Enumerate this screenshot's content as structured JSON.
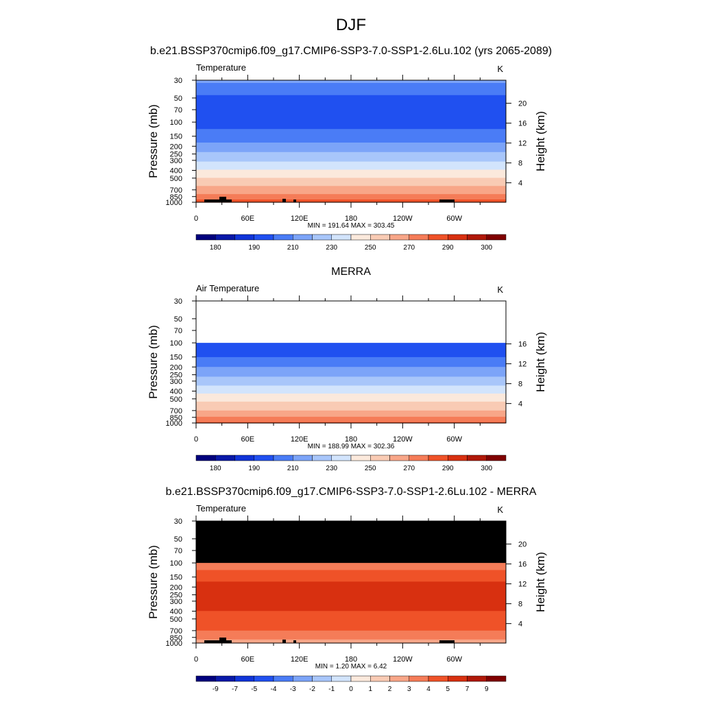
{
  "figure": {
    "title": "DJF"
  },
  "panels": [
    {
      "title": "b.e21.BSSP370cmip6.f09_g17.CMIP6-SSP3-7.0-SSP1-2.6Lu.102 (yrs 2065-2089)",
      "left_label": "Temperature",
      "units": "K",
      "stats": "MIN = 191.64  MAX = 303.45",
      "ylabel": "Pressure (mb)",
      "ylabel_right": "Height (km)",
      "pressure_ticks": [
        "30",
        "50",
        "70",
        "100",
        "150",
        "200",
        "250",
        "300",
        "400",
        "500",
        "700",
        "850",
        "1000"
      ],
      "height_ticks": [
        "20",
        "16",
        "12",
        "8",
        "4"
      ],
      "x_ticks": [
        "0",
        "60E",
        "120E",
        "180",
        "120W",
        "60W"
      ],
      "colorbar_labels": [
        "180",
        "190",
        "210",
        "230",
        "250",
        "270",
        "290",
        "300"
      ]
    },
    {
      "title": "MERRA",
      "left_label": "Air Temperature",
      "units": "K",
      "stats": "MIN = 188.99  MAX = 302.36",
      "ylabel": "Pressure (mb)",
      "ylabel_right": "Height (km)",
      "pressure_ticks": [
        "30",
        "50",
        "70",
        "100",
        "150",
        "200",
        "250",
        "300",
        "400",
        "500",
        "700",
        "850",
        "1000"
      ],
      "height_ticks": [
        "16",
        "12",
        "8",
        "4"
      ],
      "x_ticks": [
        "0",
        "60E",
        "120E",
        "180",
        "120W",
        "60W"
      ],
      "colorbar_labels": [
        "180",
        "190",
        "210",
        "230",
        "250",
        "270",
        "290",
        "300"
      ]
    },
    {
      "title": "b.e21.BSSP370cmip6.f09_g17.CMIP6-SSP3-7.0-SSP1-2.6Lu.102 - MERRA",
      "left_label": "Temperature",
      "units": "K",
      "stats": "MIN =   1.20  MAX =   6.42",
      "ylabel": "Pressure (mb)",
      "ylabel_right": "Height (km)",
      "pressure_ticks": [
        "30",
        "50",
        "70",
        "100",
        "150",
        "200",
        "250",
        "300",
        "400",
        "500",
        "700",
        "850",
        "1000"
      ],
      "height_ticks": [
        "20",
        "16",
        "12",
        "8",
        "4"
      ],
      "x_ticks": [
        "0",
        "60E",
        "120E",
        "180",
        "120W",
        "60W"
      ],
      "colorbar_labels": [
        "-9",
        "-7",
        "-5",
        "-4",
        "-3",
        "-2",
        "-1",
        "0",
        "1",
        "2",
        "3",
        "4",
        "5",
        "7",
        "9"
      ]
    }
  ],
  "colors": {
    "temperature_scale": [
      "#00007d",
      "#0818a8",
      "#1034d8",
      "#2050f0",
      "#4a7cf6",
      "#7ca4f8",
      "#a8c6fa",
      "#d2e4fc",
      "#fbe9dc",
      "#f9cbb4",
      "#f8a688",
      "#f57c58",
      "#ef5228",
      "#d83010",
      "#b01808",
      "#800000"
    ],
    "difference_scale": [
      "#00007d",
      "#0818a8",
      "#1034d8",
      "#2050f0",
      "#4a7cf6",
      "#7ca4f8",
      "#a8c6fa",
      "#d2e4fc",
      "#fbe9dc",
      "#f9cbb4",
      "#f8a688",
      "#f57c58",
      "#ef5228",
      "#d83010",
      "#b01808",
      "#800000"
    ],
    "missing": "#000000"
  },
  "chart_data": [
    {
      "type": "heatmap",
      "title": "Temperature",
      "units": "K",
      "x": [
        "0",
        "60E",
        "120E",
        "180",
        "120W",
        "60W"
      ],
      "y_pressure_mb": [
        30,
        50,
        70,
        100,
        150,
        200,
        250,
        300,
        400,
        500,
        700,
        850,
        1000
      ],
      "temperature_profile_K": [
        213,
        197,
        196,
        196,
        204,
        214,
        222,
        229,
        241,
        251,
        264,
        275,
        285
      ],
      "ylim_mb": [
        1000,
        30
      ],
      "height_km_ticks": [
        20,
        16,
        12,
        8,
        4
      ],
      "min": 191.64,
      "max": 303.45,
      "colorbar_levels": [
        180,
        185,
        190,
        200,
        210,
        220,
        230,
        240,
        250,
        260,
        270,
        280,
        290,
        295,
        300
      ]
    },
    {
      "type": "heatmap",
      "title": "Air Temperature",
      "units": "K",
      "x": [
        "0",
        "60E",
        "120E",
        "180",
        "120W",
        "60W"
      ],
      "y_pressure_mb": [
        100,
        150,
        200,
        250,
        300,
        400,
        500,
        700,
        850,
        1000
      ],
      "temperature_profile_K": [
        194,
        200,
        210,
        218,
        225,
        237,
        247,
        260,
        271,
        281
      ],
      "ylim_mb": [
        1000,
        30
      ],
      "height_km_ticks": [
        16,
        12,
        8,
        4
      ],
      "min": 188.99,
      "max": 302.36,
      "colorbar_levels": [
        180,
        185,
        190,
        200,
        210,
        220,
        230,
        240,
        250,
        260,
        270,
        280,
        290,
        295,
        300
      ]
    },
    {
      "type": "heatmap",
      "title": "Temperature",
      "units": "K",
      "x": [
        "0",
        "60E",
        "120E",
        "180",
        "120W",
        "60W"
      ],
      "y_pressure_mb": [
        100,
        150,
        200,
        300,
        400,
        500,
        700,
        850,
        1000
      ],
      "difference_profile_K": [
        3.5,
        4.5,
        5.5,
        5.5,
        5.0,
        4.5,
        4.0,
        3.5,
        2.0
      ],
      "ylim_mb": [
        1000,
        30
      ],
      "height_km_ticks": [
        20,
        16,
        12,
        8,
        4
      ],
      "min": 1.2,
      "max": 6.42,
      "colorbar_levels": [
        -9,
        -7,
        -5,
        -4,
        -3,
        -2,
        -1,
        0,
        1,
        2,
        3,
        4,
        5,
        7,
        9
      ]
    }
  ]
}
